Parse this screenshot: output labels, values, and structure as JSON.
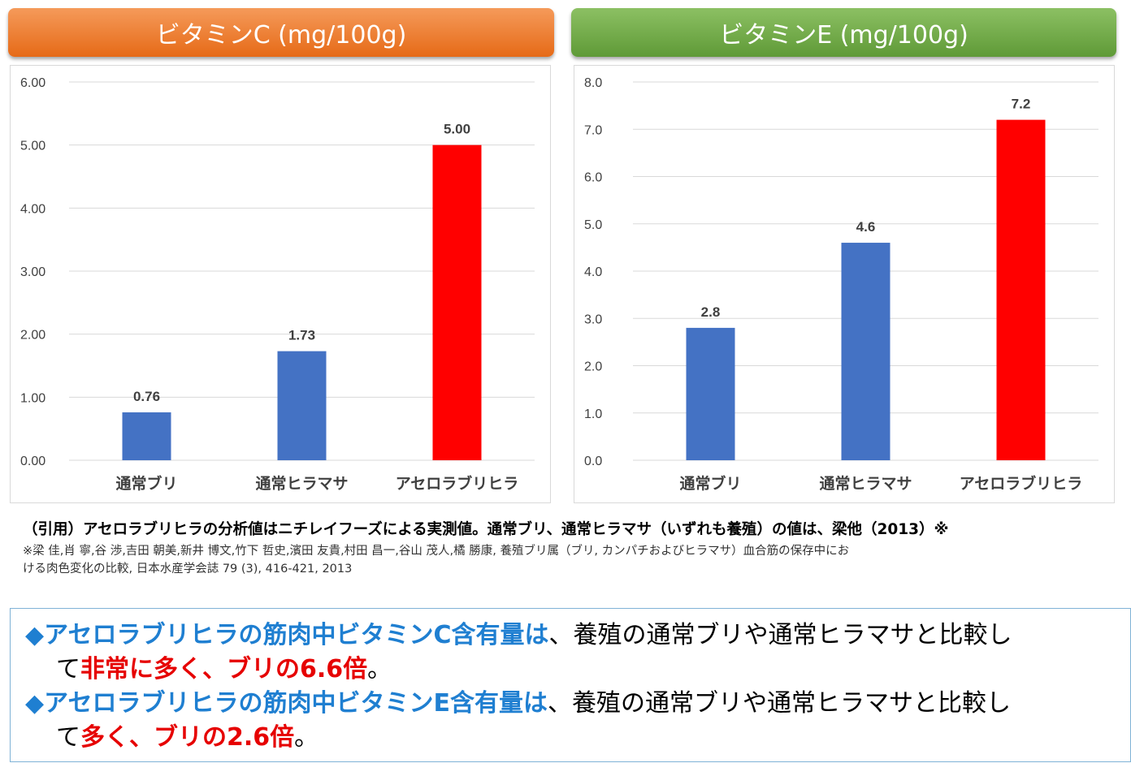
{
  "headers": {
    "vitamin_c": "ビタミンC (mg/100g)",
    "vitamin_e": "ビタミンE (mg/100g)"
  },
  "colors": {
    "normal_bar": "#4472c4",
    "highlight_bar": "#ff0000",
    "gridline": "#d9d9d9",
    "tick_text": "#404040",
    "header_c": "#ed7d31",
    "header_e": "#70ad47"
  },
  "chart_data": [
    {
      "type": "bar",
      "title": "ビタミンC (mg/100g)",
      "categories": [
        "通常ブリ",
        "通常ヒラマサ",
        "アセロラブリヒラ"
      ],
      "values": [
        0.76,
        1.73,
        5.0
      ],
      "value_labels": [
        "0.76",
        "1.73",
        "5.00"
      ],
      "highlight_index": 2,
      "ylim": [
        0,
        6
      ],
      "yticks": [
        0,
        1,
        2,
        3,
        4,
        5,
        6
      ],
      "ytick_labels": [
        "0.00",
        "1.00",
        "2.00",
        "3.00",
        "4.00",
        "5.00",
        "6.00"
      ],
      "grid": true
    },
    {
      "type": "bar",
      "title": "ビタミンE (mg/100g)",
      "categories": [
        "通常ブリ",
        "通常ヒラマサ",
        "アセロラブリヒラ"
      ],
      "values": [
        2.8,
        4.6,
        7.2
      ],
      "value_labels": [
        "2.8",
        "4.6",
        "7.2"
      ],
      "highlight_index": 2,
      "ylim": [
        0,
        8
      ],
      "yticks": [
        0,
        1,
        2,
        3,
        4,
        5,
        6,
        7,
        8
      ],
      "ytick_labels": [
        "0.0",
        "1.0",
        "2.0",
        "3.0",
        "4.0",
        "5.0",
        "6.0",
        "7.0",
        "8.0"
      ],
      "grid": true
    }
  ],
  "citation": {
    "main": "（引用）アセロラブリヒラの分析値はニチレイフーズによる実測値。通常ブリ、通常ヒラマサ（いずれも養殖）の値は、梁他（2013）※",
    "reference_1": "※梁 佳,肖 寧,谷 渉,吉田 朝美,新井 博文,竹下 哲史,濱田 友貴,村田 昌一,谷山 茂人,橘 勝康, 養殖ブリ属（ブリ, カンパチおよびヒラマサ）血合筋の保存中にお",
    "reference_2": "ける肉色変化の比較, 日本水産学会誌 79 (3), 416-421, 2013"
  },
  "summary": {
    "line1": {
      "bullet": "◆",
      "blue": "アセロラブリヒラの筋肉中ビタミンC含有量は",
      "plain": "、養殖の通常ブリや通常ヒラマサと比較し"
    },
    "line2": {
      "plain_a": "て",
      "red": "非常に多く、ブリの6.6倍",
      "plain_b": "。"
    },
    "line3": {
      "bullet": "◆",
      "blue": "アセロラブリヒラの筋肉中ビタミンE含有量は",
      "plain": "、養殖の通常ブリや通常ヒラマサと比較し"
    },
    "line4": {
      "plain_a": "て",
      "red": "多く、ブリの2.6倍",
      "plain_b": "。"
    }
  }
}
